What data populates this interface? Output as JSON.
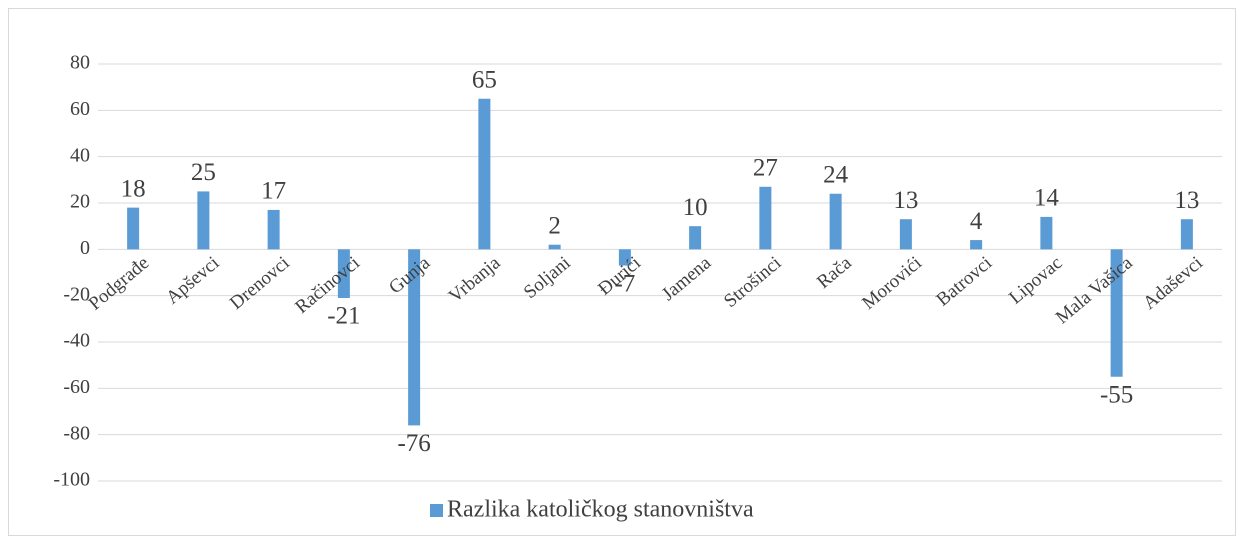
{
  "chart_data": {
    "type": "bar",
    "categories": [
      "Podgrađe",
      "Apševci",
      "Drenovci",
      "Račinovci",
      "Gunja",
      "Vrbanja",
      "Soljani",
      "Đurići",
      "Jamena",
      "Strošinci",
      "Rača",
      "Morovići",
      "Batrovci",
      "Lipovac",
      "Mala Vašica",
      "Adaševci"
    ],
    "series": [
      {
        "name": "Razlika katoličkog stanovništva",
        "color": "#5b9bd5",
        "values": [
          18,
          25,
          17,
          -21,
          -76,
          65,
          2,
          -7,
          10,
          27,
          24,
          13,
          4,
          14,
          -55,
          13
        ]
      }
    ],
    "ylim": [
      -100,
      80
    ],
    "yticks": [
      -100,
      -80,
      -60,
      -40,
      -20,
      0,
      20,
      40,
      60,
      80
    ],
    "grid": true,
    "legend": "bottom"
  }
}
